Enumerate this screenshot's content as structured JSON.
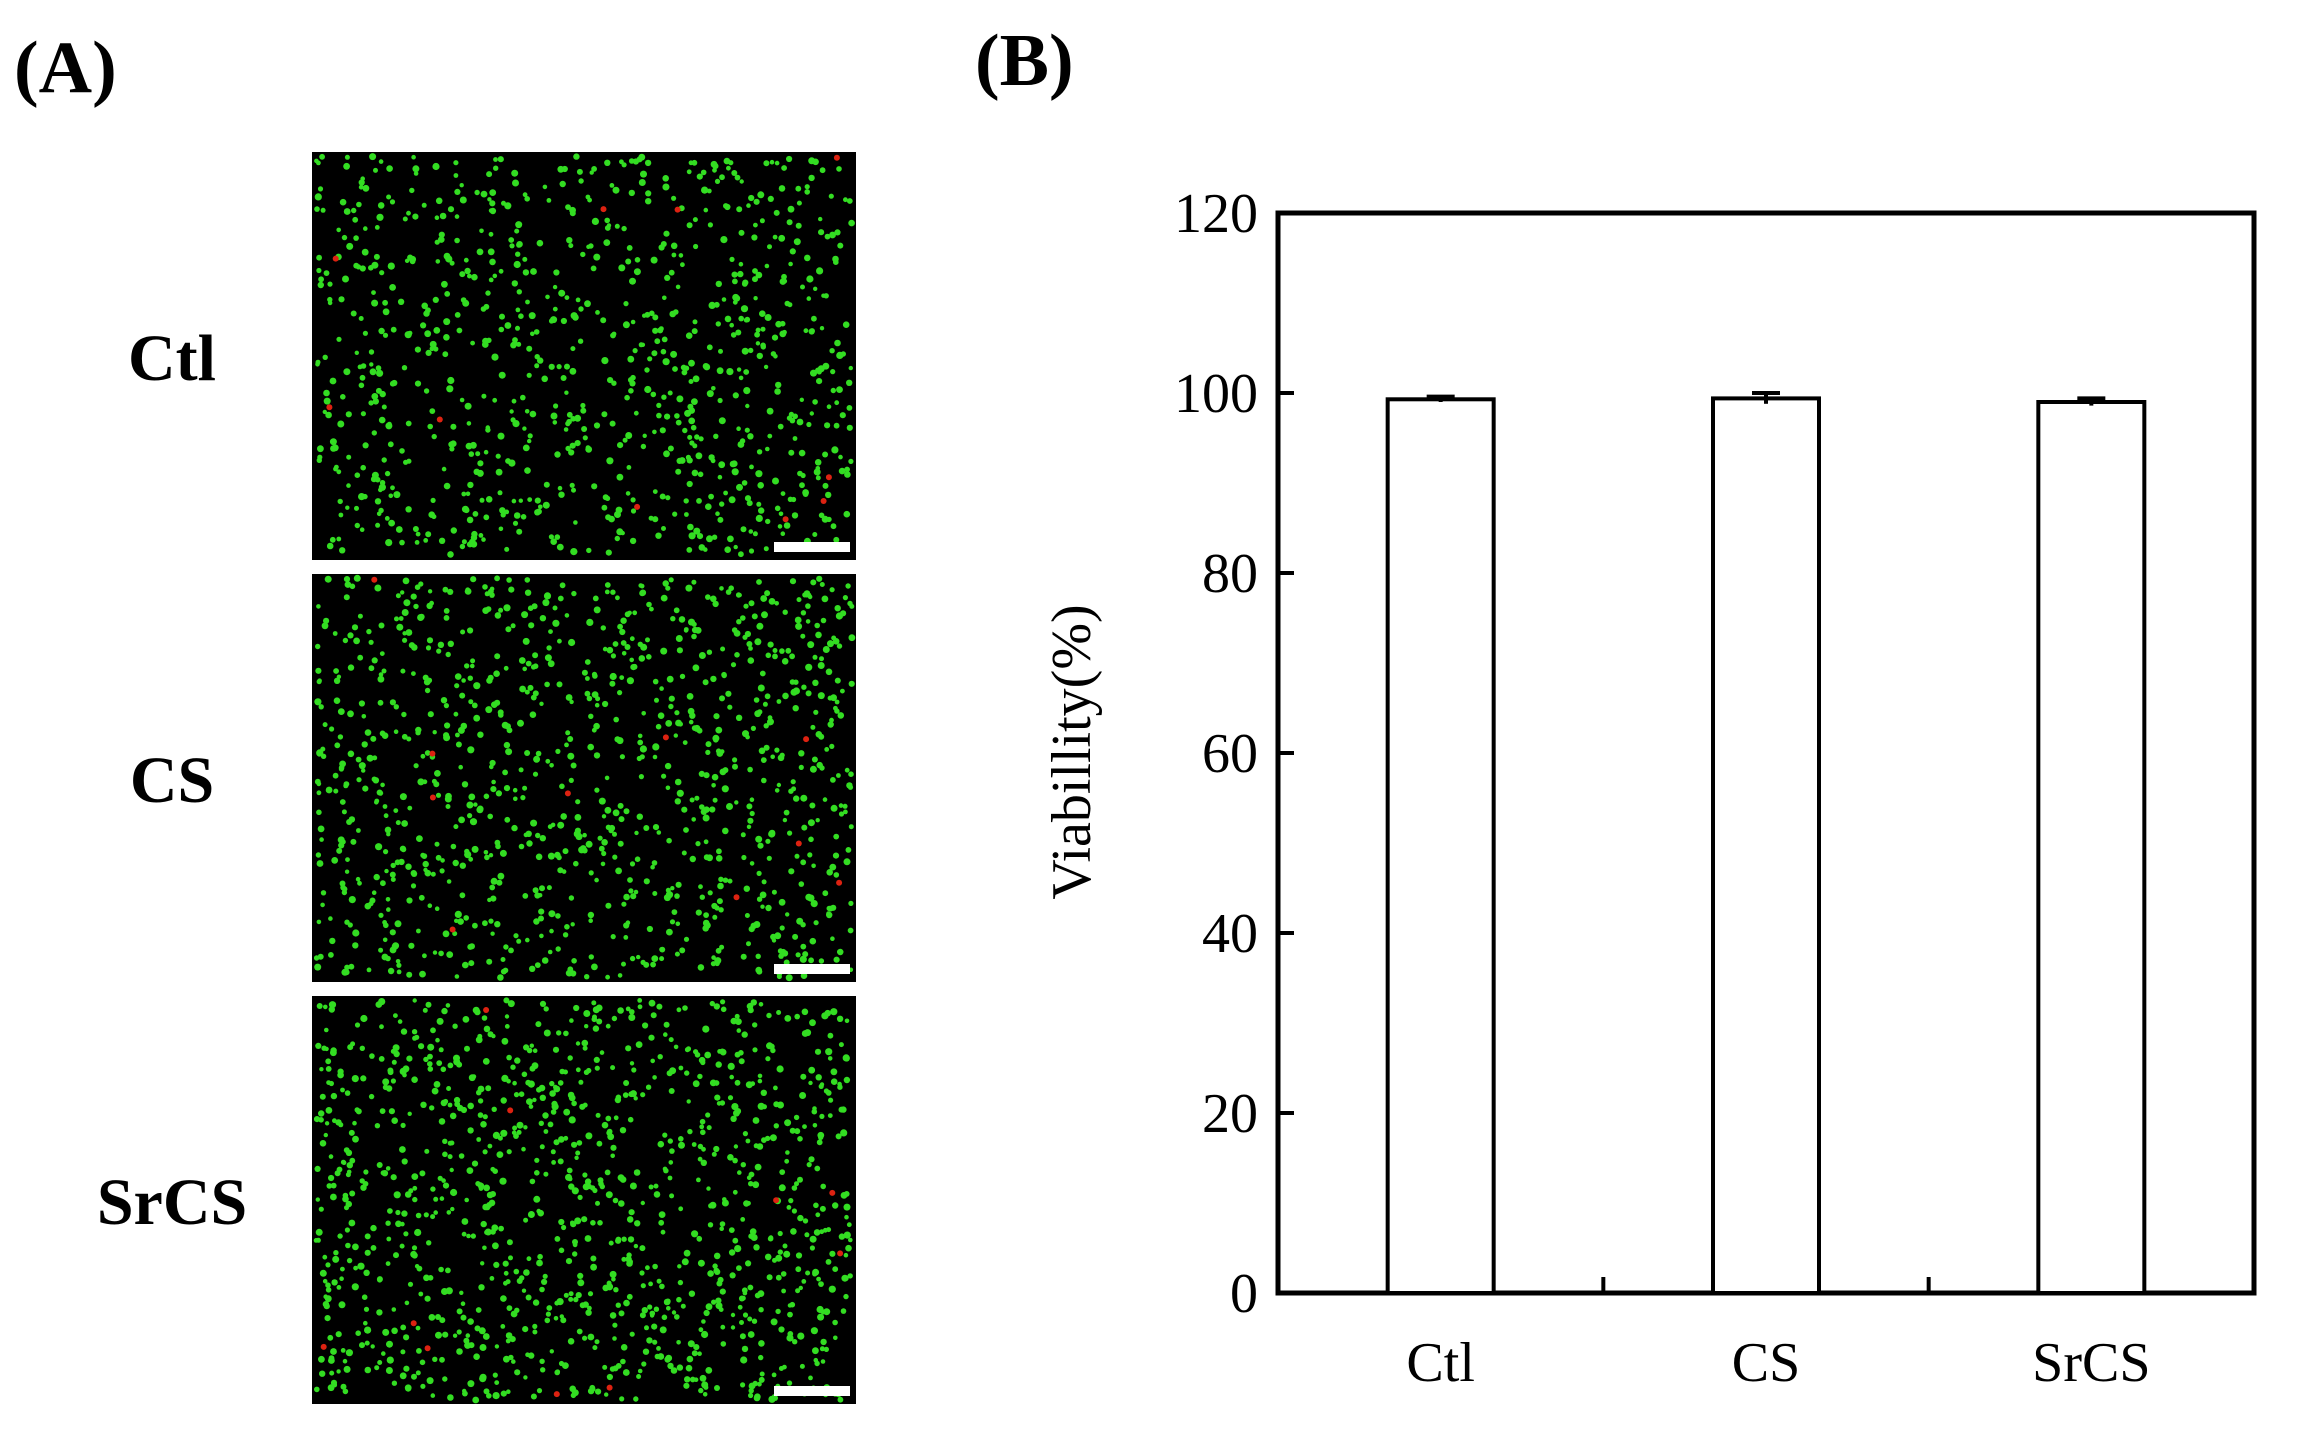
{
  "panels": {
    "a_label": "(A)",
    "b_label": "(B)"
  },
  "micrographs": [
    {
      "label": "Ctl"
    },
    {
      "label": "CS"
    },
    {
      "label": "SrCS"
    }
  ],
  "colors": {
    "live_cell": "#33dd22",
    "dead_cell": "#dd2211",
    "background": "#000000",
    "scale_bar": "#ffffff",
    "bar_fill": "#ffffff",
    "bar_stroke": "#000000"
  },
  "chart_data": {
    "type": "bar",
    "categories": [
      "Ctl",
      "CS",
      "SrCS"
    ],
    "values": [
      99.3,
      99.4,
      99.0
    ],
    "errors": [
      0.3,
      0.6,
      0.4
    ],
    "title": "",
    "xlabel": "",
    "ylabel": "Viabillity(%)",
    "ylim": [
      0,
      120
    ],
    "yticks": [
      0,
      20,
      40,
      60,
      80,
      100,
      120
    ],
    "grid": false,
    "legend": "none"
  }
}
